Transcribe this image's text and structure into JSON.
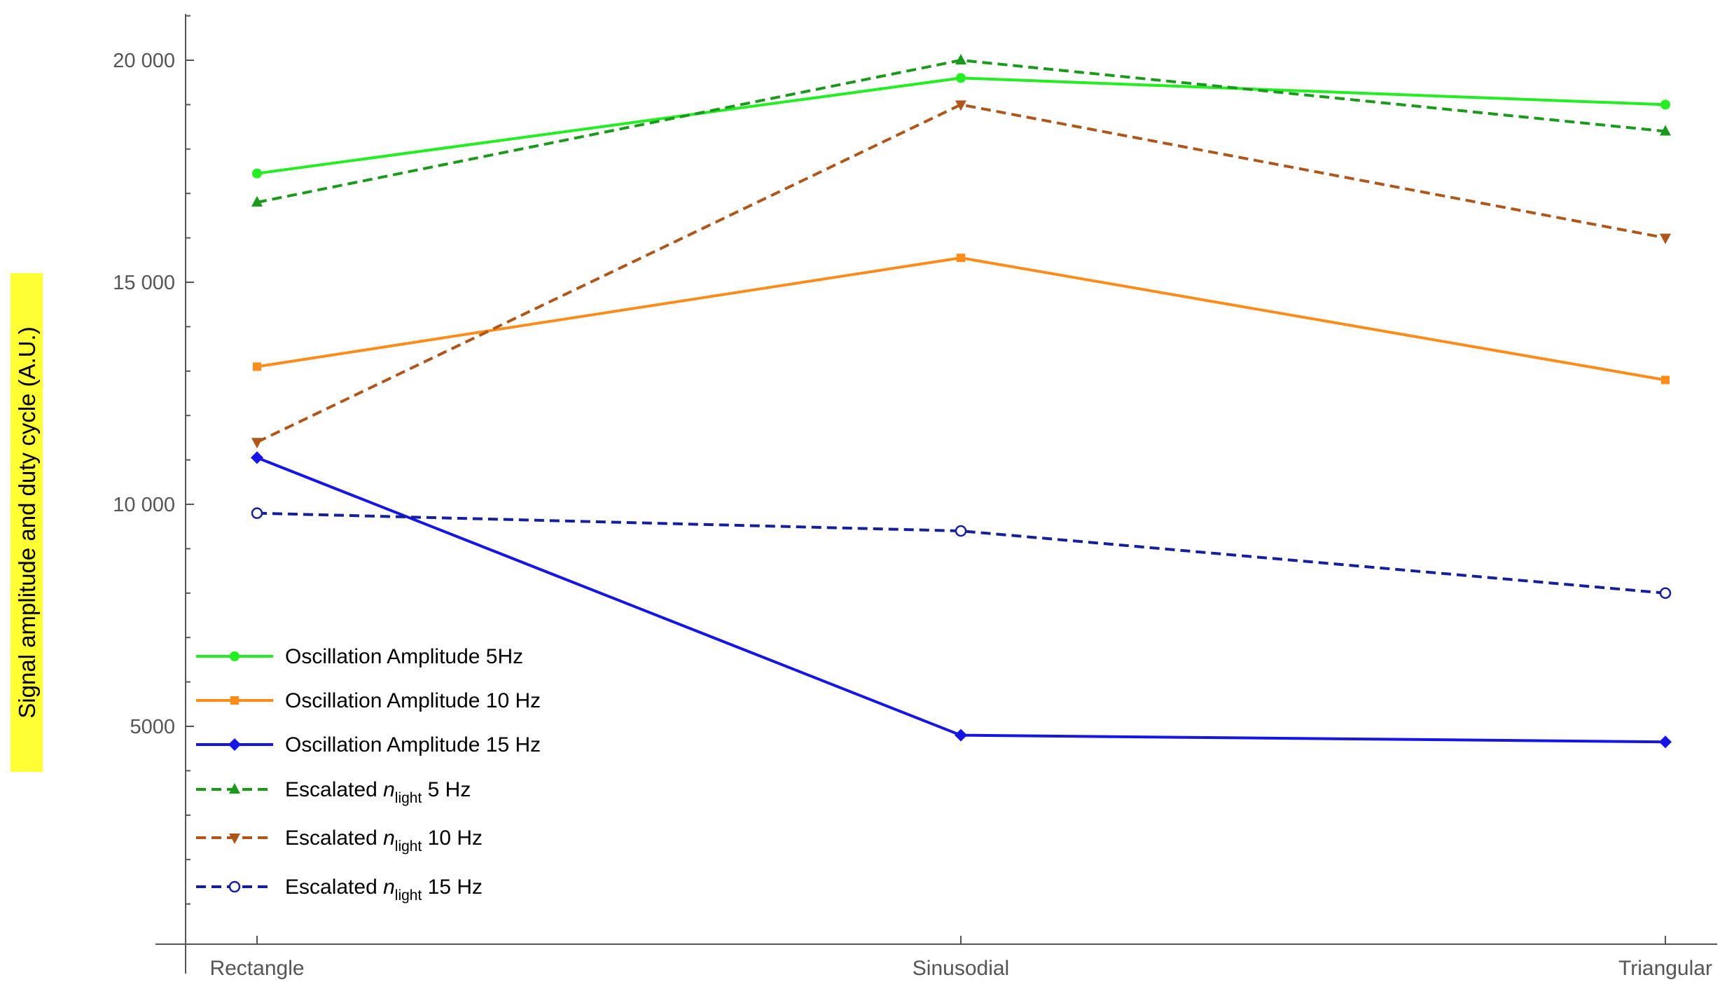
{
  "chart_data": {
    "type": "line",
    "categories": [
      "Rectangle",
      "Sinusodial",
      "Triangular"
    ],
    "ylabel": "Signal amplitude and duty cycle (A.U.)",
    "ylim": [
      0,
      21000
    ],
    "yticks_major": [
      5000,
      10000,
      15000,
      20000
    ],
    "ytick_labels": [
      "5000",
      "10 000",
      "15 000",
      "20 000"
    ],
    "yticks_minor_step": 1000,
    "grid": false,
    "legend_position": "bottom-left",
    "series": [
      {
        "name": "Oscillation Amplitude 5Hz",
        "values": [
          17450,
          19600,
          19000
        ],
        "color": "#22ee22",
        "dash": "solid",
        "marker": "circle"
      },
      {
        "name": "Oscillation Amplitude 10 Hz",
        "values": [
          13100,
          15550,
          12800
        ],
        "color": "#ff8c1a",
        "dash": "solid",
        "marker": "square"
      },
      {
        "name": "Oscillation Amplitude 15 Hz",
        "values": [
          11050,
          4800,
          4650
        ],
        "color": "#1515e6",
        "dash": "solid",
        "marker": "diamond"
      },
      {
        "name_prefix": "Escalated ",
        "name_italic": "n",
        "name_sub": "light",
        "name_suffix": " 5 Hz",
        "values": [
          16800,
          20000,
          18400
        ],
        "color": "#1a9a1a",
        "dash": "dashed",
        "marker": "triangle-up"
      },
      {
        "name_prefix": "Escalated ",
        "name_italic": "n",
        "name_sub": "light",
        "name_suffix": " 10 Hz",
        "values": [
          11400,
          19000,
          16000
        ],
        "color": "#b0561a",
        "dash": "dashed",
        "marker": "triangle-down"
      },
      {
        "name_prefix": "Escalated ",
        "name_italic": "n",
        "name_sub": "light",
        "name_suffix": " 15 Hz",
        "values": [
          9800,
          9400,
          8000
        ],
        "color": "#141f9e",
        "dash": "dashed",
        "marker": "open-circle"
      }
    ]
  }
}
